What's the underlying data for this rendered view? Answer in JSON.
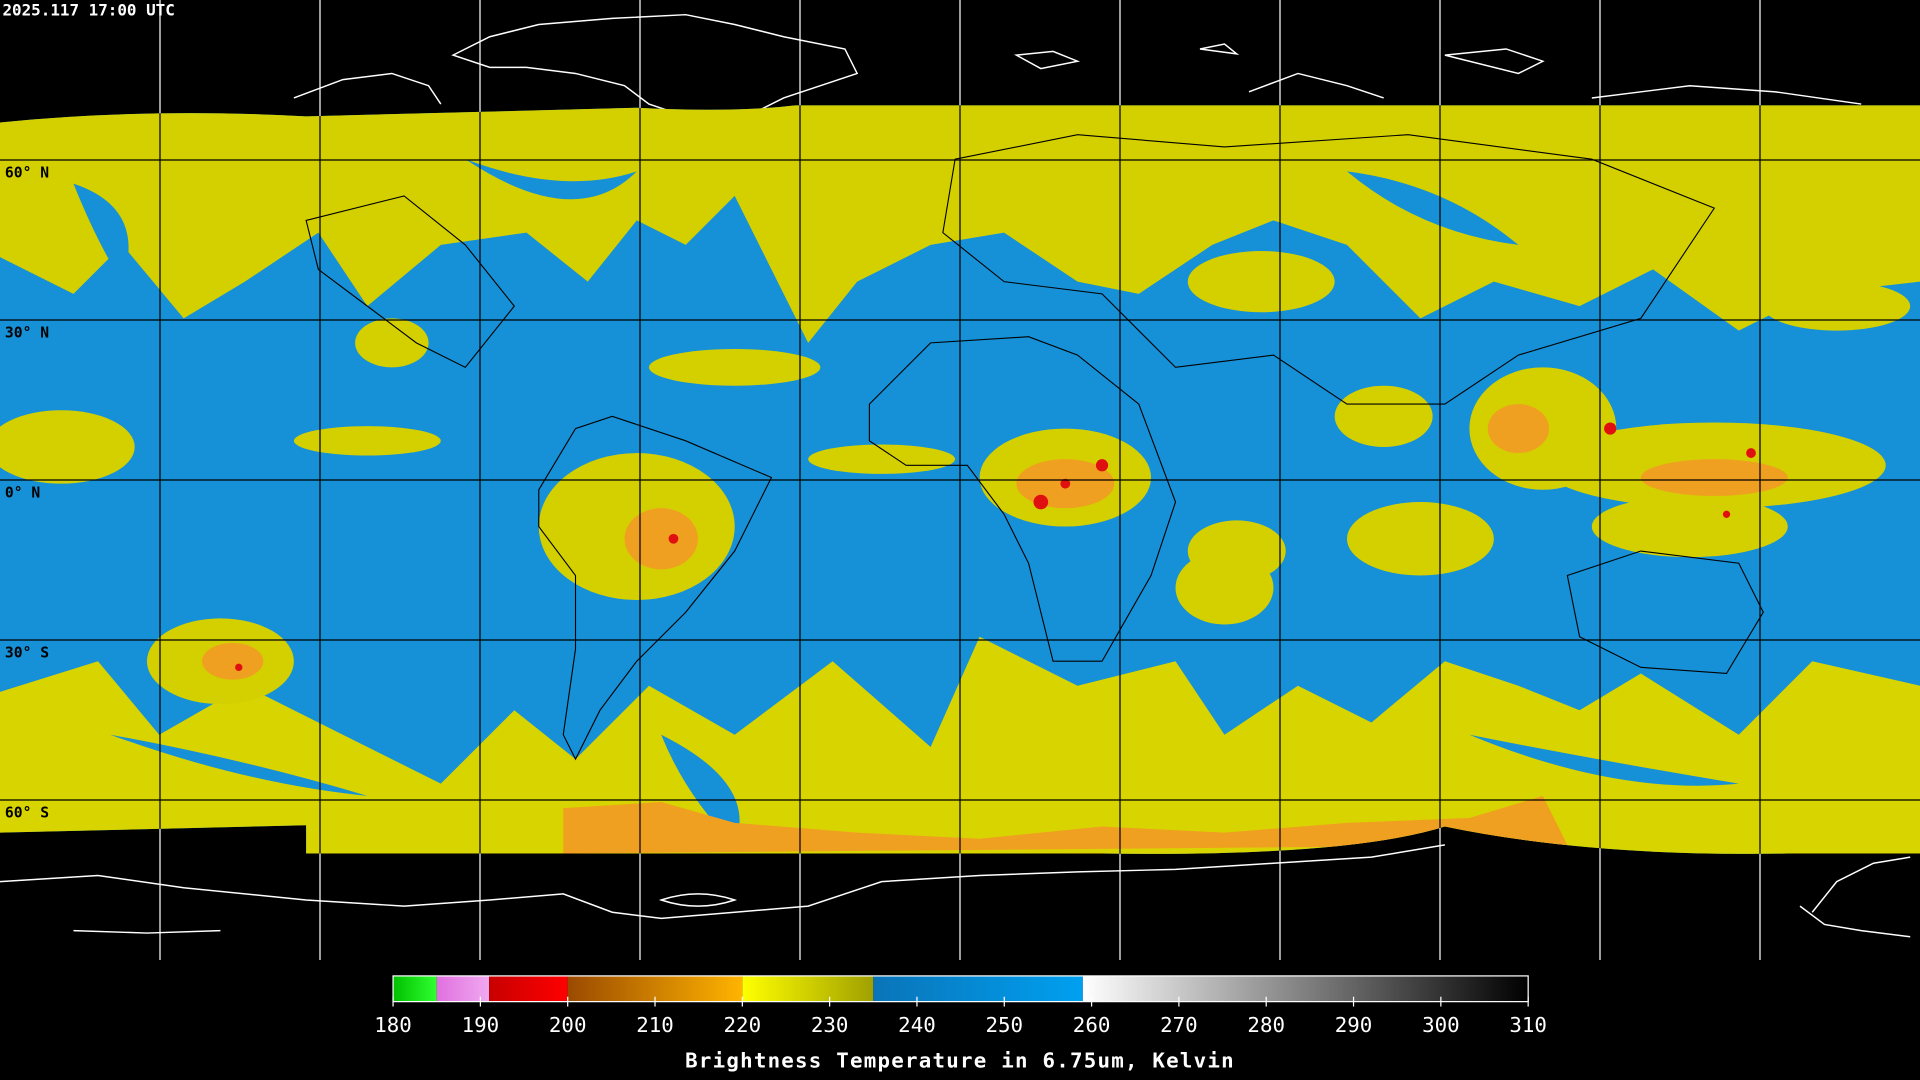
{
  "header": {
    "timestamp": "2025.117 17:00 UTC"
  },
  "map": {
    "latitudes": [
      {
        "value": 60,
        "label": "60° N"
      },
      {
        "value": 30,
        "label": "30° N"
      },
      {
        "value": 0,
        "label": "0° N"
      },
      {
        "value": -30,
        "label": "30° S"
      },
      {
        "value": -60,
        "label": "60° S"
      }
    ]
  },
  "colorbar": {
    "title": "Brightness Temperature in 6.75um, Kelvin",
    "range": [
      180,
      310
    ],
    "ticks": [
      180,
      190,
      200,
      210,
      220,
      230,
      240,
      250,
      260,
      270,
      280,
      290,
      300,
      310
    ],
    "segments": [
      {
        "from": 180,
        "to": 185,
        "colors": [
          "#00c000",
          "#30ff30"
        ]
      },
      {
        "from": 185,
        "to": 191,
        "colors": [
          "#e070e0",
          "#f0a8f0"
        ]
      },
      {
        "from": 191,
        "to": 200,
        "colors": [
          "#c80000",
          "#ff0000"
        ]
      },
      {
        "from": 200,
        "to": 220,
        "colors": [
          "#9a4a00",
          "#ffb400"
        ]
      },
      {
        "from": 220,
        "to": 235,
        "colors": [
          "#ffff00",
          "#a0a000"
        ]
      },
      {
        "from": 235,
        "to": 259,
        "colors": [
          "#0a74b8",
          "#00a0f0"
        ]
      },
      {
        "from": 259,
        "to": 310,
        "colors": [
          "#ffffff",
          "#000000"
        ]
      }
    ]
  }
}
